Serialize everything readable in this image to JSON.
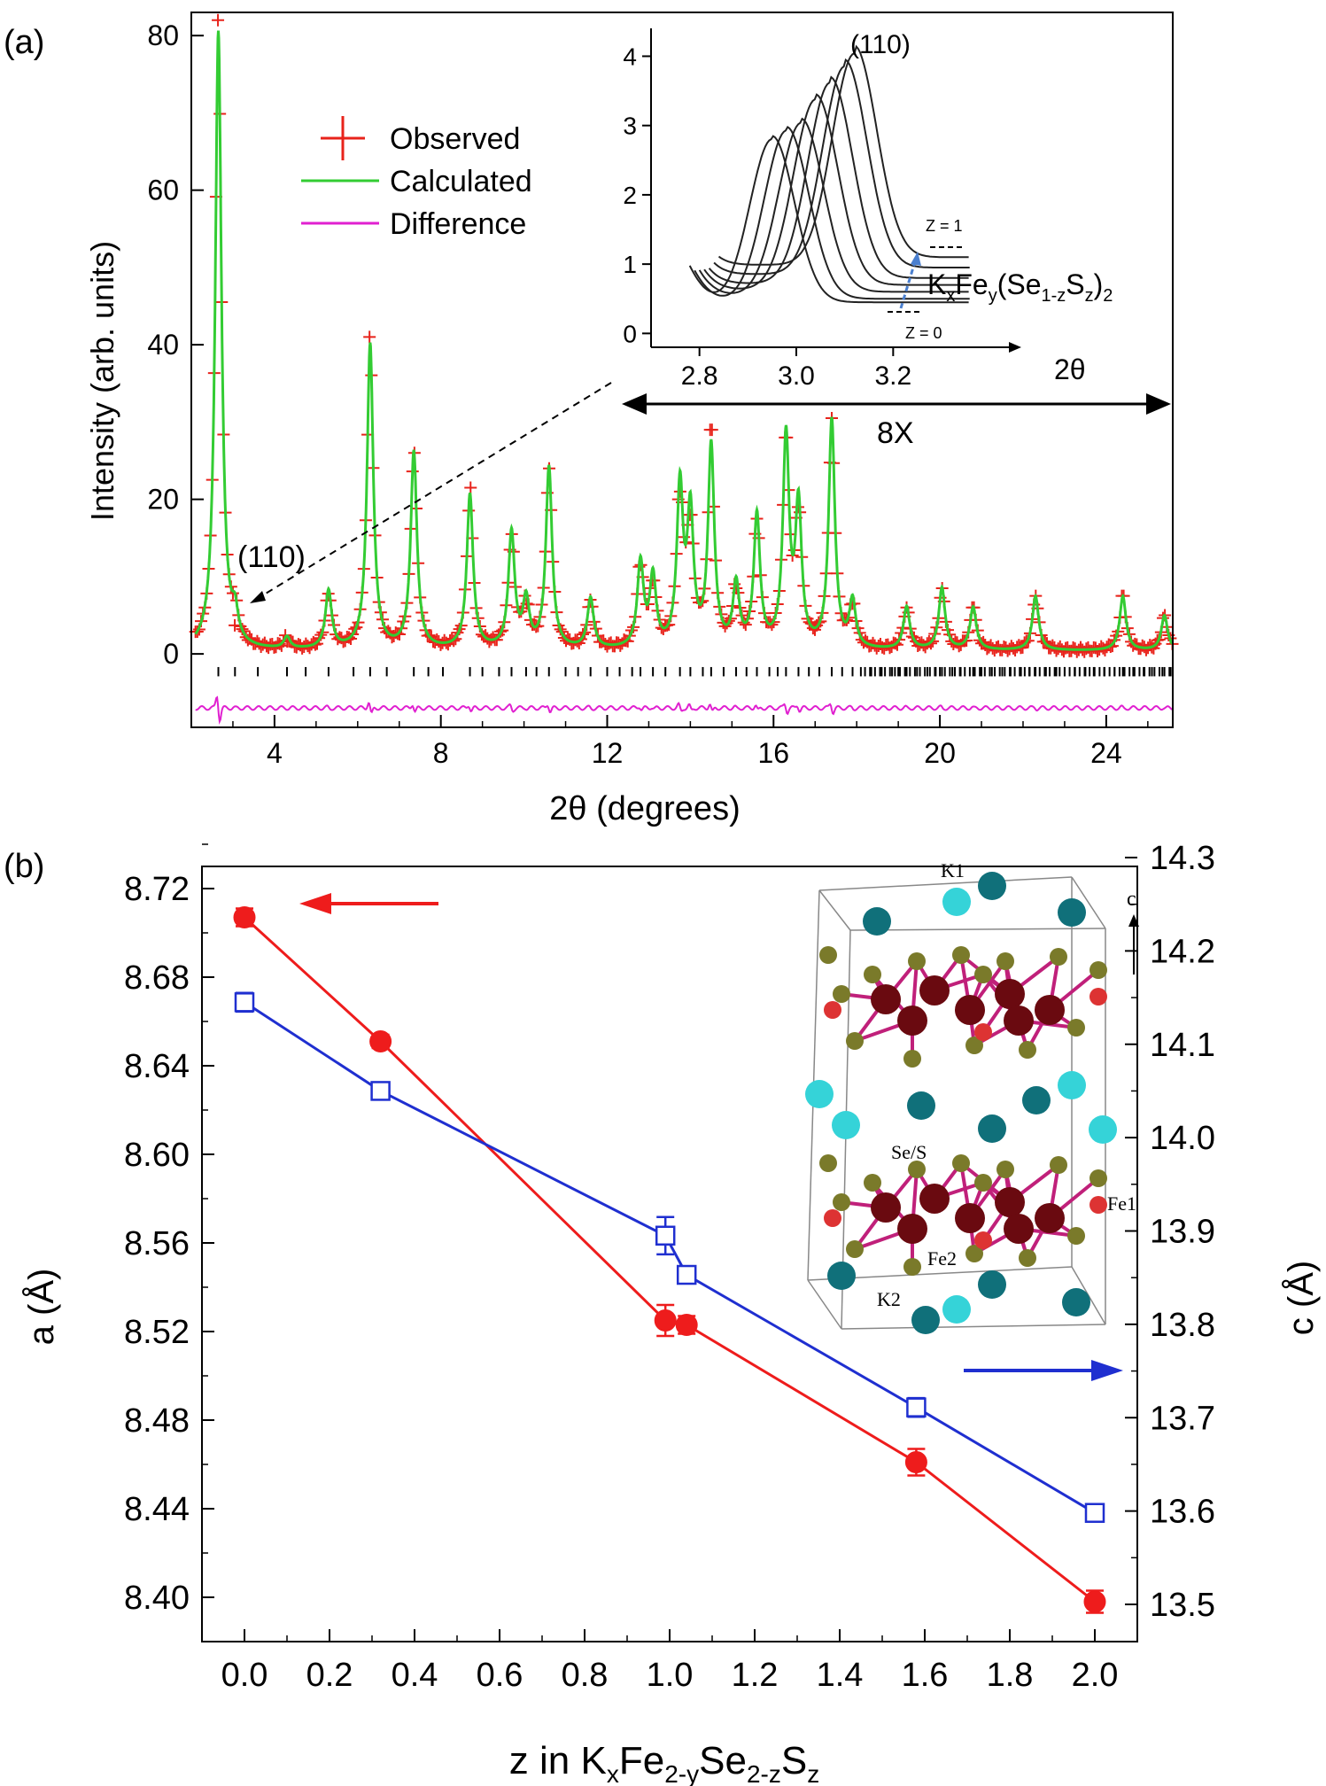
{
  "panel_labels": {
    "a": "(a)",
    "b": "(b)"
  },
  "colors": {
    "observed": "#e8231b",
    "calculated": "#33cc33",
    "difference": "#e020d0",
    "a_series": "#ee1c1c",
    "c_series": "#1f2fd0",
    "tick_marks": "#000000",
    "k_atom_dark": "#10707a",
    "k_atom_light": "#35d3d8",
    "fe_atom": "#6a0a10",
    "fe1_atom": "#dd3333",
    "se_atom": "#7a7a2a",
    "bond": "#c0207a"
  },
  "chart_data": [
    {
      "id": "panel-a",
      "type": "line",
      "xlabel": "2θ (degrees)",
      "ylabel": "Intensity (arb. units)",
      "xlim": [
        2,
        25.6
      ],
      "ylim": [
        -9.5,
        83
      ],
      "xticks": [
        4,
        8,
        12,
        16,
        20,
        24
      ],
      "yticks": [
        0,
        20,
        40,
        60,
        80
      ],
      "legend": {
        "placement": "upper-left",
        "entries": [
          {
            "name": "Observed",
            "marker": "plus"
          },
          {
            "name": "Calculated",
            "marker": "line"
          },
          {
            "name": "Difference",
            "marker": "line"
          }
        ]
      },
      "series": [
        {
          "name": "Observed",
          "baseline": 0.4
        },
        {
          "name": "Calculated",
          "baseline": 0.4
        },
        {
          "name": "Difference",
          "offset": -7
        }
      ],
      "peaks": [
        {
          "x": 2.65,
          "y": 80,
          "obs": 82
        },
        {
          "x": 3.05,
          "y": 3.5,
          "obs": 3.7
        },
        {
          "x": 4.3,
          "y": 1.5,
          "obs": 1.6
        },
        {
          "x": 5.3,
          "y": 7.5,
          "obs": 7.8
        },
        {
          "x": 6.3,
          "y": 39.5,
          "obs": 41
        },
        {
          "x": 7.35,
          "y": 25.5,
          "obs": 26
        },
        {
          "x": 8.7,
          "y": 20,
          "obs": 21.5
        },
        {
          "x": 9.7,
          "y": 15,
          "obs": 15.5
        },
        {
          "x": 10.05,
          "y": 6,
          "obs": 6.5
        },
        {
          "x": 10.6,
          "y": 23.5,
          "obs": 24
        },
        {
          "x": 11.6,
          "y": 6.5,
          "obs": 7
        },
        {
          "x": 12.8,
          "y": 11,
          "obs": 11.5
        },
        {
          "x": 13.1,
          "y": 9,
          "obs": 9.5
        },
        {
          "x": 13.75,
          "y": 20.5,
          "obs": 21
        },
        {
          "x": 14.0,
          "y": 17,
          "obs": 18
        },
        {
          "x": 14.5,
          "y": 26,
          "obs": 29
        },
        {
          "x": 15.1,
          "y": 8,
          "obs": 8.5
        },
        {
          "x": 15.6,
          "y": 17,
          "obs": 17.5
        },
        {
          "x": 16.3,
          "y": 27,
          "obs": 28
        },
        {
          "x": 16.6,
          "y": 18,
          "obs": 19
        },
        {
          "x": 17.4,
          "y": 29.5,
          "obs": 30.5
        },
        {
          "x": 17.9,
          "y": 6,
          "obs": 6.5
        },
        {
          "x": 19.2,
          "y": 5.5,
          "obs": 6
        },
        {
          "x": 20.05,
          "y": 8,
          "obs": 8.5
        },
        {
          "x": 20.8,
          "y": 5.5,
          "obs": 6
        },
        {
          "x": 22.3,
          "y": 7,
          "obs": 7.5
        },
        {
          "x": 24.4,
          "y": 7,
          "obs": 7.5
        },
        {
          "x": 25.4,
          "y": 4.5,
          "obs": 5
        }
      ],
      "bragg_ticks": [
        2.65,
        3.05,
        3.6,
        4.3,
        4.75,
        5.3,
        5.9,
        6.3,
        6.7,
        7.35,
        7.7,
        8.05,
        8.7,
        9.0,
        9.4,
        9.7,
        10.05,
        10.3,
        10.6,
        11.0,
        11.3,
        11.6,
        12.0,
        12.3,
        12.6,
        12.8,
        13.1,
        13.4,
        13.75,
        14.0,
        14.3,
        14.5,
        14.8,
        15.1,
        15.35,
        15.6,
        15.9,
        16.1,
        16.3,
        16.6,
        16.85,
        17.1,
        17.4,
        17.65,
        17.9,
        18.1,
        18.35,
        18.6,
        18.85,
        19.0,
        19.2,
        19.45,
        19.7,
        19.9,
        20.05,
        20.3,
        20.5,
        20.8,
        21.0,
        21.25,
        21.5,
        21.7,
        21.95,
        22.15,
        22.3,
        22.55,
        22.8,
        23.0,
        23.25,
        23.5,
        23.7,
        23.95,
        24.2,
        24.4,
        24.65,
        24.9,
        25.1,
        25.35,
        25.55
      ],
      "annotations": {
        "peak_label": "(110)",
        "scale_label": "8X"
      }
    },
    {
      "id": "panel-a-inset",
      "type": "line",
      "xlabel": "2θ",
      "xlim": [
        2.7,
        3.45
      ],
      "ylim": [
        -0.2,
        4.3
      ],
      "xticks": [
        2.8,
        3.0,
        3.2
      ],
      "yticks": [
        0,
        1,
        2,
        3,
        4
      ],
      "peak_label": "(110)",
      "formula": {
        "main": "K",
        "x": "x",
        "fe": "Fe",
        "y": "y",
        "se": "(Se",
        "one_minus_z": "1-z",
        "s": "S",
        "z": "z",
        "close": ")",
        "two": "2"
      },
      "z_top_label": "Z = 1",
      "z_bottom_label": "Z = 0",
      "series": [
        {
          "center": 2.95,
          "peak": 2.85,
          "base": 0.45,
          "start": 2.78
        },
        {
          "center": 2.98,
          "peak": 2.98,
          "base": 0.5,
          "start": 2.79
        },
        {
          "center": 3.01,
          "peak": 3.1,
          "base": 0.6,
          "start": 2.8
        },
        {
          "center": 3.04,
          "peak": 3.45,
          "base": 0.7,
          "start": 2.81
        },
        {
          "center": 3.07,
          "peak": 3.7,
          "base": 0.8,
          "start": 2.82
        },
        {
          "center": 3.1,
          "peak": 3.95,
          "base": 0.95,
          "start": 2.83
        },
        {
          "center": 3.12,
          "peak": 4.15,
          "base": 1.1,
          "start": 2.84
        }
      ]
    },
    {
      "id": "panel-b",
      "type": "line",
      "xlabel_parts": {
        "main": "z in K",
        "x": "x",
        "fe": "Fe",
        "two_minus_y": "2-y",
        "se": "Se",
        "two_minus_z": "2-z",
        "s": "S",
        "z": "z"
      },
      "ylabel_left": "a (Å)",
      "ylabel_right": "c (Å)",
      "xlim": [
        -0.1,
        2.1
      ],
      "xticks": [
        0.0,
        0.2,
        0.4,
        0.6,
        0.8,
        1.0,
        1.2,
        1.4,
        1.6,
        1.8,
        2.0
      ],
      "xtick_labels": [
        "0.0",
        "0.2",
        "0.4",
        "0.6",
        "0.8",
        "1.0",
        "1.2",
        "1.4",
        "1.6",
        "1.8",
        "2.0"
      ],
      "ylim_left": [
        8.38,
        8.73
      ],
      "yticks_left": [
        8.4,
        8.44,
        8.48,
        8.52,
        8.56,
        8.6,
        8.64,
        8.68,
        8.72
      ],
      "ytick_labels_left": [
        "8.40",
        "8.44",
        "8.48",
        "8.52",
        "8.56",
        "8.60",
        "8.64",
        "8.68",
        "8.72"
      ],
      "ylim_right": [
        13.5,
        14.3
      ],
      "yticks_right": [
        13.5,
        13.6,
        13.7,
        13.8,
        13.9,
        14.0,
        14.1,
        14.2,
        14.3
      ],
      "ytick_labels_right": [
        "13.5",
        "13.6",
        "13.7",
        "13.8",
        "13.9",
        "14.0",
        "14.1",
        "14.2",
        "14.3"
      ],
      "series": [
        {
          "name": "a",
          "axis": "left",
          "marker": "filled-circle",
          "x": [
            0.0,
            0.32,
            0.99,
            1.04,
            1.58,
            2.0
          ],
          "y": [
            8.707,
            8.651,
            8.525,
            8.523,
            8.461,
            8.398
          ],
          "err": [
            0.004,
            0.003,
            0.007,
            0.004,
            0.006,
            0.005
          ]
        },
        {
          "name": "c",
          "axis": "right",
          "marker": "open-square",
          "x": [
            0.0,
            0.32,
            0.99,
            1.04,
            1.58,
            2.0
          ],
          "y": [
            14.145,
            14.05,
            13.895,
            13.853,
            13.711,
            13.598
          ],
          "err": [
            0.01,
            0.008,
            0.02,
            0.006,
            0.01,
            0.006
          ]
        }
      ],
      "arrows": {
        "a": "points-left",
        "c": "points-right"
      },
      "inset_labels": {
        "k1": "K1",
        "k2": "K2",
        "c_axis": "c",
        "se_s": "Se/S",
        "fe1": "Fe1",
        "fe2": "Fe2"
      }
    }
  ]
}
